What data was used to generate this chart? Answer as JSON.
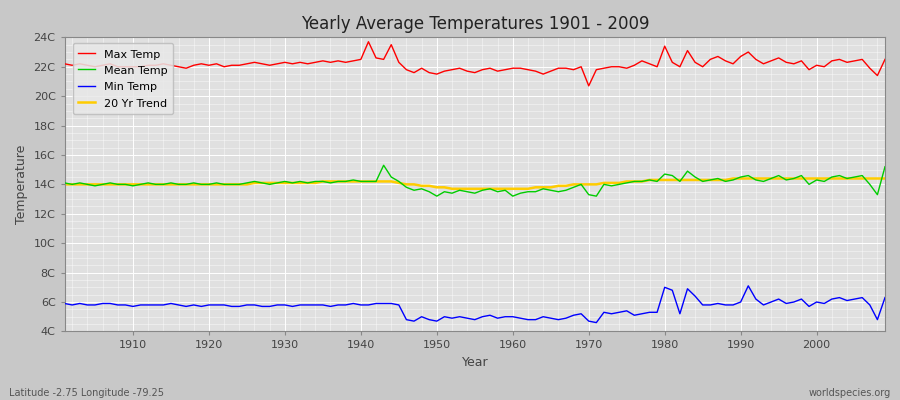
{
  "title": "Yearly Average Temperatures 1901 - 2009",
  "xlabel": "Year",
  "ylabel": "Temperature",
  "bottom_left": "Latitude -2.75 Longitude -79.25",
  "bottom_right": "worldspecies.org",
  "ylim": [
    4,
    24
  ],
  "xlim": [
    1901,
    2009
  ],
  "yticks": [
    4,
    6,
    8,
    10,
    12,
    14,
    16,
    18,
    20,
    22,
    24
  ],
  "ytick_labels": [
    "4C",
    "6C",
    "8C",
    "10C",
    "12C",
    "14C",
    "16C",
    "18C",
    "20C",
    "22C",
    "24C"
  ],
  "xticks": [
    1910,
    1920,
    1930,
    1940,
    1950,
    1960,
    1970,
    1980,
    1990,
    2000
  ],
  "fig_bg_color": "#c8c8c8",
  "plot_bg_color": "#e0e0e0",
  "grid_color": "#ffffff",
  "max_temp_color": "#ff0000",
  "mean_temp_color": "#00cc00",
  "min_temp_color": "#0000ff",
  "trend_color": "#ffcc00",
  "legend_labels": [
    "Max Temp",
    "Mean Temp",
    "Min Temp",
    "20 Yr Trend"
  ],
  "years": [
    1901,
    1902,
    1903,
    1904,
    1905,
    1906,
    1907,
    1908,
    1909,
    1910,
    1911,
    1912,
    1913,
    1914,
    1915,
    1916,
    1917,
    1918,
    1919,
    1920,
    1921,
    1922,
    1923,
    1924,
    1925,
    1926,
    1927,
    1928,
    1929,
    1930,
    1931,
    1932,
    1933,
    1934,
    1935,
    1936,
    1937,
    1938,
    1939,
    1940,
    1941,
    1942,
    1943,
    1944,
    1945,
    1946,
    1947,
    1948,
    1949,
    1950,
    1951,
    1952,
    1953,
    1954,
    1955,
    1956,
    1957,
    1958,
    1959,
    1960,
    1961,
    1962,
    1963,
    1964,
    1965,
    1966,
    1967,
    1968,
    1969,
    1970,
    1971,
    1972,
    1973,
    1974,
    1975,
    1976,
    1977,
    1978,
    1979,
    1980,
    1981,
    1982,
    1983,
    1984,
    1985,
    1986,
    1987,
    1988,
    1989,
    1990,
    1991,
    1992,
    1993,
    1994,
    1995,
    1996,
    1997,
    1998,
    1999,
    2000,
    2001,
    2002,
    2003,
    2004,
    2005,
    2006,
    2007,
    2008,
    2009
  ],
  "max_temp": [
    22.2,
    22.1,
    22.2,
    22.1,
    22.0,
    22.1,
    22.2,
    22.0,
    22.0,
    22.0,
    22.0,
    22.1,
    22.1,
    22.2,
    22.1,
    22.0,
    21.9,
    22.1,
    22.2,
    22.1,
    22.2,
    22.0,
    22.1,
    22.1,
    22.2,
    22.3,
    22.2,
    22.1,
    22.2,
    22.3,
    22.2,
    22.3,
    22.2,
    22.3,
    22.4,
    22.3,
    22.4,
    22.3,
    22.4,
    22.5,
    23.7,
    22.6,
    22.5,
    23.5,
    22.3,
    21.8,
    21.6,
    21.9,
    21.6,
    21.5,
    21.7,
    21.8,
    21.9,
    21.7,
    21.6,
    21.8,
    21.9,
    21.7,
    21.8,
    21.9,
    21.9,
    21.8,
    21.7,
    21.5,
    21.7,
    21.9,
    21.9,
    21.8,
    22.0,
    20.7,
    21.8,
    21.9,
    22.0,
    22.0,
    21.9,
    22.1,
    22.4,
    22.2,
    22.0,
    23.4,
    22.3,
    22.0,
    23.1,
    22.3,
    22.0,
    22.5,
    22.7,
    22.4,
    22.2,
    22.7,
    23.0,
    22.5,
    22.2,
    22.4,
    22.6,
    22.3,
    22.2,
    22.4,
    21.8,
    22.1,
    22.0,
    22.4,
    22.5,
    22.3,
    22.4,
    22.5,
    21.9,
    21.4,
    22.5
  ],
  "mean_temp": [
    14.1,
    14.0,
    14.1,
    14.0,
    13.9,
    14.0,
    14.1,
    14.0,
    14.0,
    13.9,
    14.0,
    14.1,
    14.0,
    14.0,
    14.1,
    14.0,
    14.0,
    14.1,
    14.0,
    14.0,
    14.1,
    14.0,
    14.0,
    14.0,
    14.1,
    14.2,
    14.1,
    14.0,
    14.1,
    14.2,
    14.1,
    14.2,
    14.1,
    14.2,
    14.2,
    14.1,
    14.2,
    14.2,
    14.3,
    14.2,
    14.2,
    14.2,
    15.3,
    14.5,
    14.2,
    13.8,
    13.6,
    13.7,
    13.5,
    13.2,
    13.5,
    13.4,
    13.6,
    13.5,
    13.4,
    13.6,
    13.7,
    13.5,
    13.6,
    13.2,
    13.4,
    13.5,
    13.5,
    13.7,
    13.6,
    13.5,
    13.6,
    13.8,
    14.0,
    13.3,
    13.2,
    14.0,
    13.9,
    14.0,
    14.1,
    14.2,
    14.2,
    14.3,
    14.2,
    14.7,
    14.6,
    14.2,
    14.9,
    14.5,
    14.2,
    14.3,
    14.4,
    14.2,
    14.3,
    14.5,
    14.6,
    14.3,
    14.2,
    14.4,
    14.6,
    14.3,
    14.4,
    14.6,
    14.0,
    14.3,
    14.2,
    14.5,
    14.6,
    14.4,
    14.5,
    14.6,
    14.0,
    13.3,
    15.2
  ],
  "min_temp": [
    5.9,
    5.8,
    5.9,
    5.8,
    5.8,
    5.9,
    5.9,
    5.8,
    5.8,
    5.7,
    5.8,
    5.8,
    5.8,
    5.8,
    5.9,
    5.8,
    5.7,
    5.8,
    5.7,
    5.8,
    5.8,
    5.8,
    5.7,
    5.7,
    5.8,
    5.8,
    5.7,
    5.7,
    5.8,
    5.8,
    5.7,
    5.8,
    5.8,
    5.8,
    5.8,
    5.7,
    5.8,
    5.8,
    5.9,
    5.8,
    5.8,
    5.9,
    5.9,
    5.9,
    5.8,
    4.8,
    4.7,
    5.0,
    4.8,
    4.7,
    5.0,
    4.9,
    5.0,
    4.9,
    4.8,
    5.0,
    5.1,
    4.9,
    5.0,
    5.0,
    4.9,
    4.8,
    4.8,
    5.0,
    4.9,
    4.8,
    4.9,
    5.1,
    5.2,
    4.7,
    4.6,
    5.3,
    5.2,
    5.3,
    5.4,
    5.1,
    5.2,
    5.3,
    5.3,
    7.0,
    6.8,
    5.2,
    6.9,
    6.4,
    5.8,
    5.8,
    5.9,
    5.8,
    5.8,
    6.0,
    7.1,
    6.2,
    5.8,
    6.0,
    6.2,
    5.9,
    6.0,
    6.2,
    5.7,
    6.0,
    5.9,
    6.2,
    6.3,
    6.1,
    6.2,
    6.3,
    5.8,
    4.8,
    6.3
  ],
  "trend": [
    14.0,
    14.0,
    14.0,
    14.0,
    14.0,
    14.0,
    14.0,
    14.0,
    14.0,
    14.0,
    14.0,
    14.0,
    14.0,
    14.0,
    14.0,
    14.0,
    14.0,
    14.0,
    14.0,
    14.0,
    14.0,
    14.0,
    14.0,
    14.0,
    14.0,
    14.1,
    14.1,
    14.1,
    14.1,
    14.1,
    14.1,
    14.1,
    14.1,
    14.1,
    14.2,
    14.2,
    14.2,
    14.2,
    14.2,
    14.2,
    14.2,
    14.2,
    14.2,
    14.2,
    14.1,
    14.0,
    14.0,
    13.9,
    13.9,
    13.8,
    13.8,
    13.7,
    13.7,
    13.7,
    13.7,
    13.7,
    13.7,
    13.7,
    13.7,
    13.7,
    13.7,
    13.7,
    13.8,
    13.8,
    13.8,
    13.9,
    13.9,
    14.0,
    14.0,
    14.0,
    14.0,
    14.1,
    14.1,
    14.1,
    14.2,
    14.2,
    14.2,
    14.3,
    14.3,
    14.3,
    14.3,
    14.3,
    14.3,
    14.3,
    14.3,
    14.3,
    14.3,
    14.3,
    14.4,
    14.4,
    14.4,
    14.4,
    14.4,
    14.4,
    14.4,
    14.4,
    14.4,
    14.4,
    14.4,
    14.4,
    14.4,
    14.4,
    14.4,
    14.4,
    14.4,
    14.4,
    14.4,
    14.4,
    14.4
  ]
}
